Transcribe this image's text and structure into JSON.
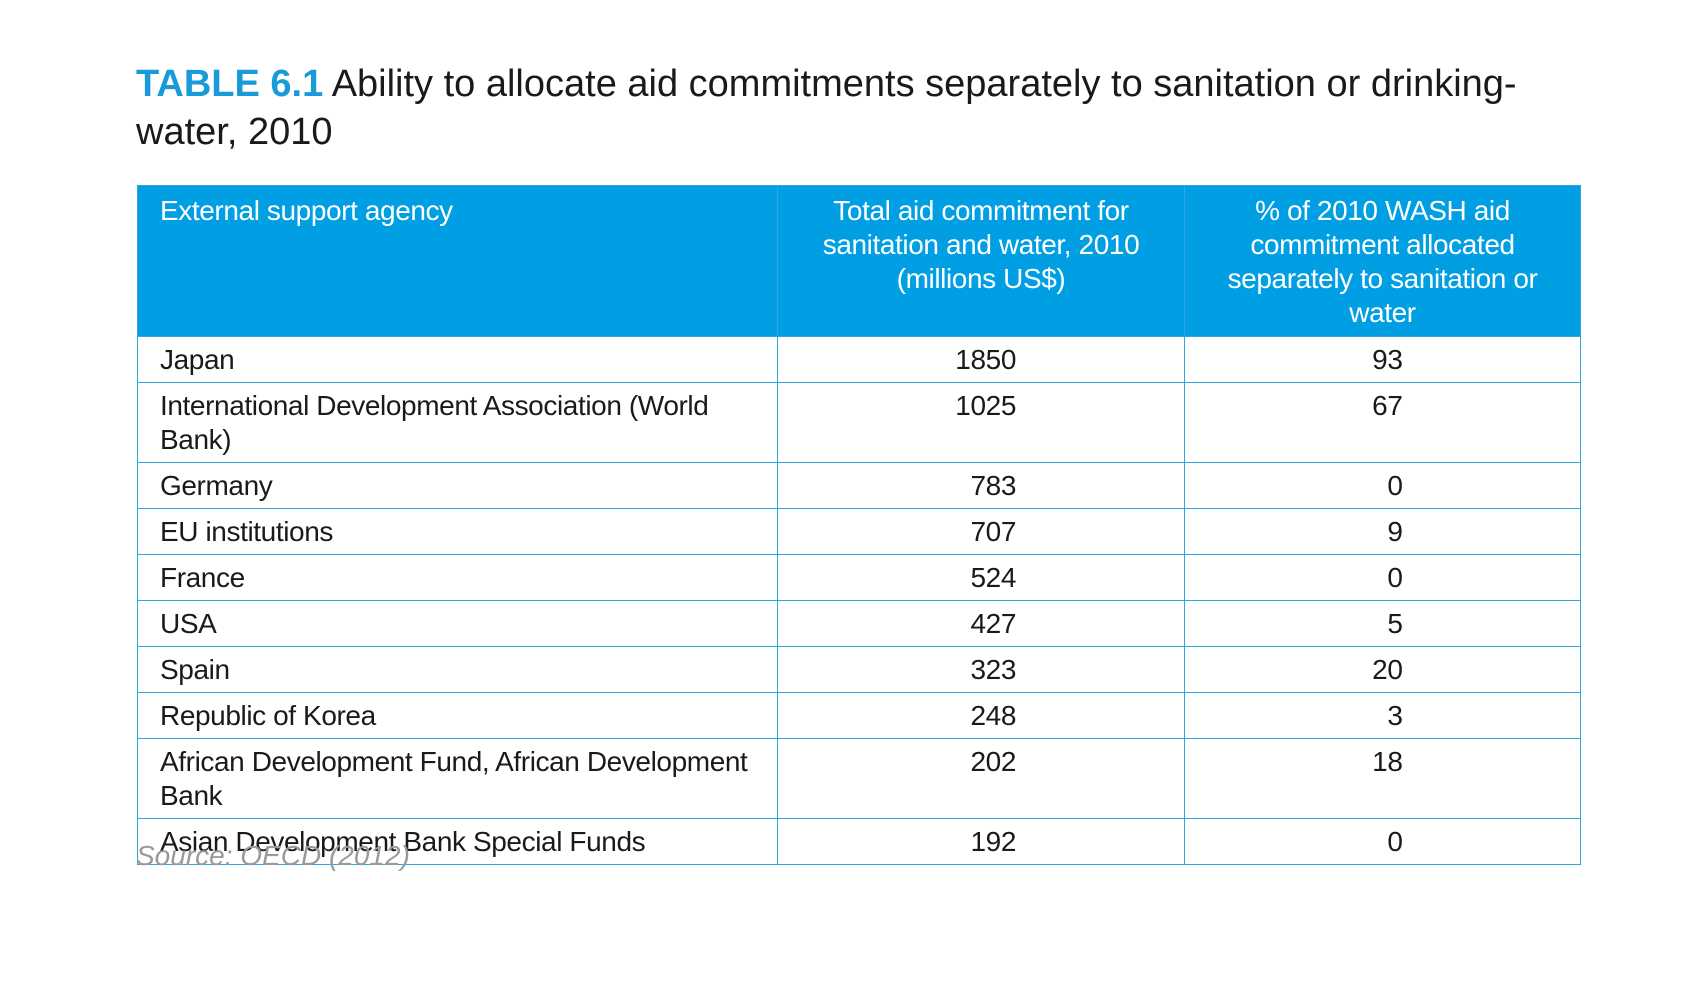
{
  "title": {
    "label": "TABLE 6.1",
    "text": "Ability to allocate aid commitments separately to sanitation or drinking-water, 2010"
  },
  "table": {
    "headers": [
      "External support agency",
      "Total aid commitment for sanitation and water, 2010 (millions US$)",
      "% of 2010 WASH aid commitment allocated separately to sanitation or water"
    ],
    "rows": [
      {
        "agency": "Japan",
        "total": "1850",
        "percent": "93"
      },
      {
        "agency": "International Development Association (World Bank)",
        "total": "1025",
        "percent": "67"
      },
      {
        "agency": "Germany",
        "total": "783",
        "percent": "0"
      },
      {
        "agency": "EU institutions",
        "total": "707",
        "percent": "9"
      },
      {
        "agency": "France",
        "total": "524",
        "percent": "0"
      },
      {
        "agency": "USA",
        "total": "427",
        "percent": "5"
      },
      {
        "agency": "Spain",
        "total": "323",
        "percent": "20"
      },
      {
        "agency": "Republic of Korea",
        "total": "248",
        "percent": "3"
      },
      {
        "agency": "African Development Fund, African Development Bank",
        "total": "202",
        "percent": "18"
      },
      {
        "agency": "Asian Development Bank Special Funds",
        "total": "192",
        "percent": "0"
      }
    ]
  },
  "source": "Source: OECD (2012)",
  "colors": {
    "accent": "#1a9ad9",
    "header_background": "#009fe3",
    "border": "#2fa6e0",
    "source_text": "#9a9a9a"
  }
}
